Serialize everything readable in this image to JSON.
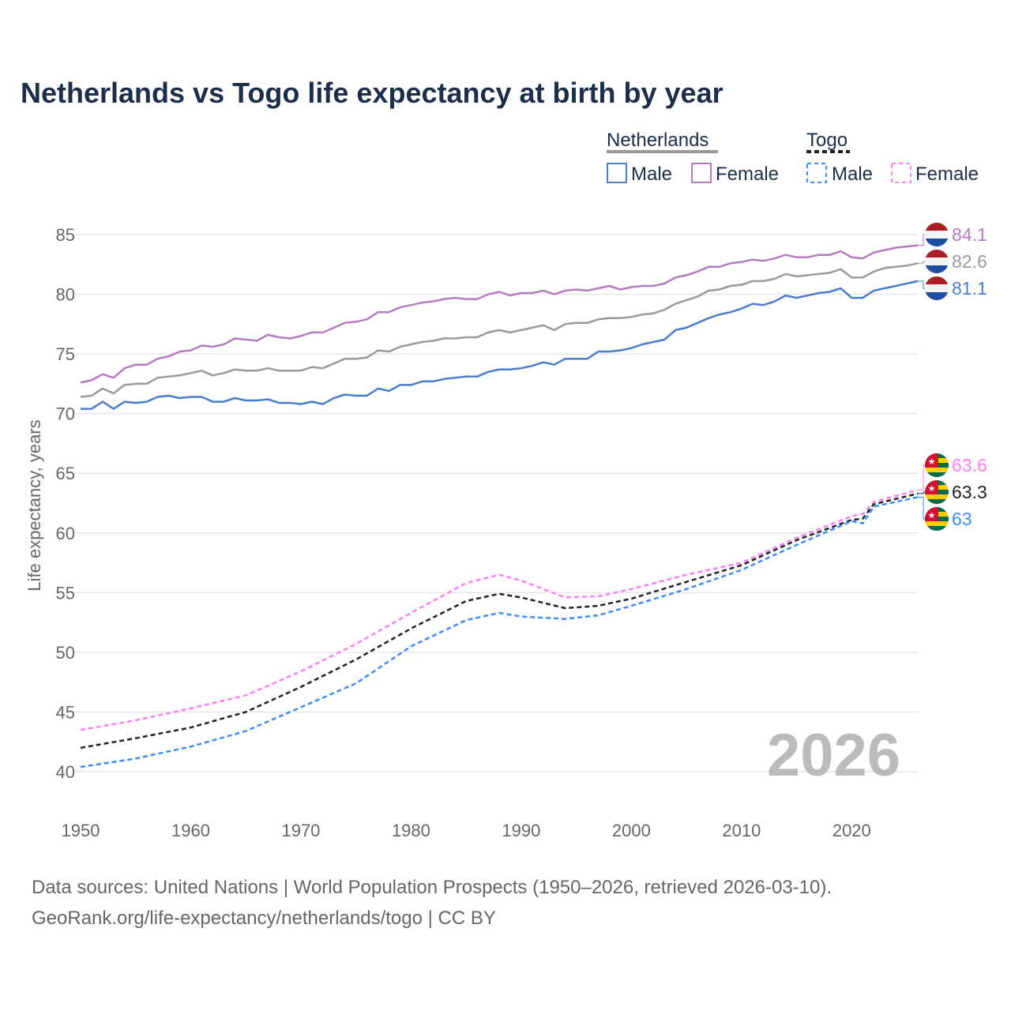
{
  "chart_data": {
    "type": "line",
    "title": "Netherlands vs Togo life expectancy at birth by year",
    "xlabel": "",
    "ylabel": "Life expectancy, years",
    "xlim": [
      1950,
      2026
    ],
    "ylim": [
      40,
      85
    ],
    "x_ticks": [
      "1950",
      "1960",
      "1970",
      "1980",
      "1990",
      "2000",
      "2010",
      "2020"
    ],
    "y_ticks": [
      "40",
      "45",
      "50",
      "55",
      "60",
      "65",
      "70",
      "75",
      "80",
      "85"
    ],
    "grid": true,
    "year_watermark": "2026",
    "legend": {
      "placement": "top-right",
      "groups": [
        {
          "name": "Netherlands",
          "items": [
            "Male",
            "Female"
          ]
        },
        {
          "name": "Togo",
          "items": [
            "Male",
            "Female"
          ]
        }
      ]
    },
    "series": [
      {
        "name": "Netherlands Female",
        "color": "#b57bbf",
        "dash": false,
        "end_label": "84.1",
        "flag": "netherlands",
        "x_start": 1950,
        "values": [
          72.6,
          72.8,
          73.3,
          73.0,
          73.8,
          74.1,
          74.1,
          74.6,
          74.8,
          75.2,
          75.3,
          75.7,
          75.6,
          75.8,
          76.3,
          76.2,
          76.1,
          76.6,
          76.4,
          76.3,
          76.5,
          76.8,
          76.8,
          77.2,
          77.6,
          77.7,
          77.9,
          78.5,
          78.5,
          78.9,
          79.1,
          79.3,
          79.4,
          79.6,
          79.7,
          79.6,
          79.6,
          80.0,
          80.2,
          79.9,
          80.1,
          80.1,
          80.3,
          80.0,
          80.3,
          80.4,
          80.3,
          80.5,
          80.7,
          80.4,
          80.6,
          80.7,
          80.7,
          80.9,
          81.4,
          81.6,
          81.9,
          82.3,
          82.3,
          82.6,
          82.7,
          82.9,
          82.8,
          83.0,
          83.3,
          83.1,
          83.1,
          83.3,
          83.3,
          83.6,
          83.1,
          83.0,
          83.5,
          83.7,
          83.9,
          84.0,
          84.1
        ]
      },
      {
        "name": "Netherlands Total",
        "color": "#9a9a9a",
        "dash": false,
        "end_label": "82.6",
        "flag": "netherlands",
        "x_start": 1950,
        "values": [
          71.4,
          71.5,
          72.1,
          71.7,
          72.4,
          72.5,
          72.5,
          73.0,
          73.1,
          73.2,
          73.4,
          73.6,
          73.2,
          73.4,
          73.7,
          73.6,
          73.6,
          73.8,
          73.6,
          73.6,
          73.6,
          73.9,
          73.8,
          74.2,
          74.6,
          74.6,
          74.7,
          75.3,
          75.2,
          75.6,
          75.8,
          76.0,
          76.1,
          76.3,
          76.3,
          76.4,
          76.4,
          76.8,
          77.0,
          76.8,
          77.0,
          77.2,
          77.4,
          77.0,
          77.5,
          77.6,
          77.6,
          77.9,
          78.0,
          78.0,
          78.1,
          78.3,
          78.4,
          78.7,
          79.2,
          79.5,
          79.8,
          80.3,
          80.4,
          80.7,
          80.8,
          81.1,
          81.1,
          81.3,
          81.7,
          81.5,
          81.6,
          81.7,
          81.8,
          82.1,
          81.4,
          81.4,
          81.9,
          82.2,
          82.3,
          82.4,
          82.6
        ]
      },
      {
        "name": "Netherlands Male",
        "color": "#4a7dcc",
        "dash": false,
        "end_label": "81.1",
        "flag": "netherlands",
        "x_start": 1950,
        "values": [
          70.4,
          70.4,
          71.0,
          70.4,
          71.0,
          70.9,
          71.0,
          71.4,
          71.5,
          71.3,
          71.4,
          71.4,
          71.0,
          71.0,
          71.3,
          71.1,
          71.1,
          71.2,
          70.9,
          70.9,
          70.8,
          71.0,
          70.8,
          71.3,
          71.6,
          71.5,
          71.5,
          72.1,
          71.9,
          72.4,
          72.4,
          72.7,
          72.7,
          72.9,
          73.0,
          73.1,
          73.1,
          73.5,
          73.7,
          73.7,
          73.8,
          74.0,
          74.3,
          74.1,
          74.6,
          74.6,
          74.6,
          75.2,
          75.2,
          75.3,
          75.5,
          75.8,
          76.0,
          76.2,
          77.0,
          77.2,
          77.6,
          78.0,
          78.3,
          78.5,
          78.8,
          79.2,
          79.1,
          79.4,
          79.9,
          79.7,
          79.9,
          80.1,
          80.2,
          80.5,
          79.7,
          79.7,
          80.3,
          80.5,
          80.7,
          80.9,
          81.1
        ]
      },
      {
        "name": "Togo Female",
        "color": "#ff7ff5",
        "dash": true,
        "end_label": "63.6",
        "flag": "togo",
        "x": [
          1950,
          1955,
          1960,
          1965,
          1970,
          1975,
          1980,
          1985,
          1988,
          1990,
          1994,
          1997,
          2000,
          2005,
          2010,
          2015,
          2020,
          2021,
          2022,
          2026
        ],
        "values": [
          43.5,
          44.3,
          45.3,
          46.4,
          48.4,
          50.7,
          53.3,
          55.8,
          56.5,
          56.0,
          54.6,
          54.7,
          55.3,
          56.5,
          57.5,
          59.6,
          61.4,
          61.6,
          62.6,
          63.6
        ]
      },
      {
        "name": "Togo Total",
        "color": "#222222",
        "dash": true,
        "end_label": "63.3",
        "flag": "togo",
        "x": [
          1950,
          1955,
          1960,
          1965,
          1970,
          1975,
          1980,
          1985,
          1988,
          1990,
          1994,
          1997,
          2000,
          2005,
          2010,
          2015,
          2020,
          2021,
          2022,
          2026
        ],
        "values": [
          42.0,
          42.8,
          43.7,
          45.0,
          47.1,
          49.4,
          52.0,
          54.3,
          54.9,
          54.6,
          53.7,
          53.9,
          54.5,
          55.9,
          57.3,
          59.4,
          61.1,
          61.2,
          62.4,
          63.3
        ]
      },
      {
        "name": "Togo Male",
        "color": "#3d8bff",
        "dash": true,
        "end_label": "63",
        "flag": "togo",
        "x": [
          1950,
          1955,
          1960,
          1965,
          1970,
          1975,
          1980,
          1985,
          1988,
          1990,
          1994,
          1997,
          2000,
          2005,
          2010,
          2015,
          2020,
          2021,
          2022,
          2026
        ],
        "values": [
          40.4,
          41.1,
          42.1,
          43.4,
          45.4,
          47.4,
          50.5,
          52.7,
          53.3,
          53.0,
          52.8,
          53.1,
          53.9,
          55.3,
          56.9,
          59.0,
          61.0,
          60.8,
          62.2,
          63.0
        ]
      }
    ]
  },
  "source": {
    "line1": "Data sources: United Nations | World Population Prospects (1950–2026, retrieved 2026-03-10).",
    "line2": "GeoRank.org/life-expectancy/netherlands/togo | CC BY"
  }
}
